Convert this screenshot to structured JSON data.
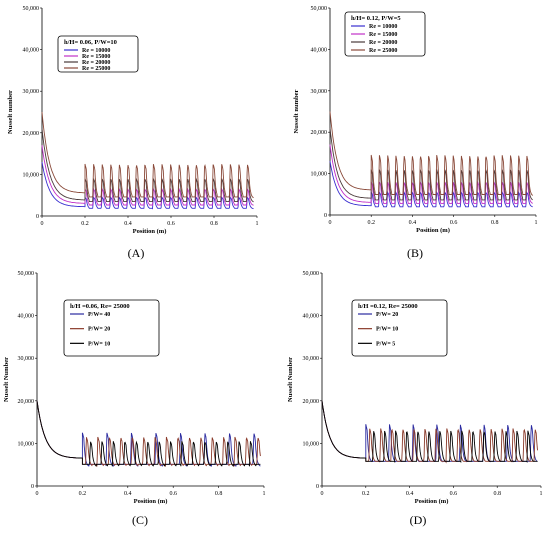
{
  "chart_data": [
    {
      "type": "line",
      "panel_label": "(A)",
      "legend_title": "h/H= 0.06, P/W=10",
      "xlabel": "Position (m)",
      "ylabel": "Nusselt number",
      "x_ticks": [
        "0",
        "0.2",
        "0.4",
        "0.6",
        "0.8",
        "1"
      ],
      "y_ticks": [
        "0",
        "10,000",
        "20,000",
        "30,000",
        "40,000",
        "50,000"
      ],
      "xlim": [
        0,
        1
      ],
      "ylim": [
        0,
        50000
      ],
      "series": [
        {
          "name": "Re = 10000",
          "color": "#3a2fd0",
          "entrance_peak": 13000,
          "entrance_base": 2200,
          "fin_base": 1700,
          "fin_peak": 4500,
          "fin_count": 20
        },
        {
          "name": "Re = 15000",
          "color": "#c030c8",
          "entrance_peak": 17000,
          "entrance_base": 3000,
          "fin_base": 2500,
          "fin_peak": 6500,
          "fin_count": 20
        },
        {
          "name": "Re = 20000",
          "color": "#4a3a3a",
          "entrance_peak": 21000,
          "entrance_base": 3800,
          "fin_base": 3300,
          "fin_peak": 9000,
          "fin_count": 20
        },
        {
          "name": "Re = 25000",
          "color": "#8a4a3a",
          "entrance_peak": 25000,
          "entrance_base": 5500,
          "fin_base": 4200,
          "fin_peak": 12500,
          "fin_count": 20
        }
      ]
    },
    {
      "type": "line",
      "panel_label": "(B)",
      "legend_title": "h/H= 0.12, P/W=5",
      "xlabel": "Position (m)",
      "ylabel": "Nusselt number",
      "x_ticks": [
        "0",
        "0.2",
        "0.4",
        "0.6",
        "0.8",
        "1"
      ],
      "y_ticks": [
        "0",
        "10,000",
        "20,000",
        "30,000",
        "40,000",
        "50,000"
      ],
      "xlim": [
        0,
        1
      ],
      "ylim": [
        0,
        50000
      ],
      "series": [
        {
          "name": "Re = 10000",
          "color": "#3a2fd0",
          "entrance_peak": 13000,
          "entrance_base": 2200,
          "fin_base": 1900,
          "fin_peak": 5500,
          "fin_count": 20
        },
        {
          "name": "Re = 15000",
          "color": "#c030c8",
          "entrance_peak": 17000,
          "entrance_base": 3000,
          "fin_base": 2700,
          "fin_peak": 8000,
          "fin_count": 20
        },
        {
          "name": "Re = 20000",
          "color": "#4a3a3a",
          "entrance_peak": 21000,
          "entrance_base": 4000,
          "fin_base": 3500,
          "fin_peak": 11000,
          "fin_count": 20
        },
        {
          "name": "Re = 25000",
          "color": "#8a4a3a",
          "entrance_peak": 25000,
          "entrance_base": 6000,
          "fin_base": 4500,
          "fin_peak": 14500,
          "fin_count": 20
        }
      ]
    },
    {
      "type": "line",
      "panel_label": "(C)",
      "legend_title": "h/H =0.06, Re= 25000",
      "xlabel": "Position (m)",
      "ylabel": "Nusselt Number",
      "x_ticks": [
        "0",
        "0.2",
        "0.4",
        "0.6",
        "0.8",
        "1"
      ],
      "y_ticks": [
        "0",
        "10,000",
        "20,000",
        "30,000",
        "40,000",
        "50,000"
      ],
      "xlim": [
        0,
        1
      ],
      "ylim": [
        0,
        50000
      ],
      "series": [
        {
          "name": "P/W= 40",
          "color": "#2a2aa0",
          "entrance_peak": 20000,
          "entrance_base": 6500,
          "fin_base": 4500,
          "fin_peak": 12500,
          "fin_count": 8
        },
        {
          "name": "P/W= 20",
          "color": "#8a3a2a",
          "entrance_peak": 20000,
          "entrance_base": 6500,
          "fin_base": 4500,
          "fin_peak": 11500,
          "fin_count": 16
        },
        {
          "name": "P/W= 10",
          "color": "#000000",
          "entrance_peak": 20000,
          "entrance_base": 6500,
          "fin_base": 4500,
          "fin_peak": 10500,
          "fin_count": 16
        }
      ]
    },
    {
      "type": "line",
      "panel_label": "(D)",
      "legend_title": "h/H =0.12, Re= 25000",
      "xlabel": "Position (m)",
      "ylabel": "Nusselt Number",
      "x_ticks": [
        "0",
        "0.2",
        "0.4",
        "0.6",
        "0.8",
        "1"
      ],
      "y_ticks": [
        "0",
        "10,000",
        "20,000",
        "30,000",
        "40,000",
        "50,000"
      ],
      "xlim": [
        0,
        1
      ],
      "ylim": [
        0,
        50000
      ],
      "series": [
        {
          "name": "P/W= 20",
          "color": "#2a2aa0",
          "entrance_peak": 20000,
          "entrance_base": 6500,
          "fin_base": 5500,
          "fin_peak": 14500,
          "fin_count": 8
        },
        {
          "name": "P/W= 10",
          "color": "#8a3a2a",
          "entrance_peak": 20000,
          "entrance_base": 6500,
          "fin_base": 5500,
          "fin_peak": 13500,
          "fin_count": 16
        },
        {
          "name": "P/W= 5",
          "color": "#000000",
          "entrance_peak": 20000,
          "entrance_base": 6500,
          "fin_base": 5500,
          "fin_peak": 13000,
          "fin_count": 16
        }
      ]
    }
  ]
}
